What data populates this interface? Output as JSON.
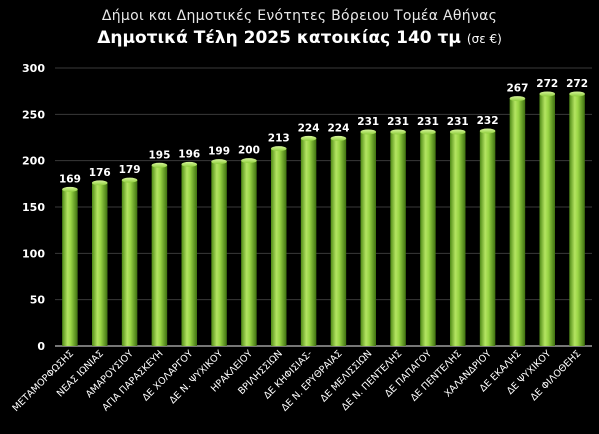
{
  "chart_data": {
    "type": "bar",
    "title": "Δήμοι και Δημοτικές Ενότητες Βόρειου Τομέα Αθήνας",
    "subtitle": "Δημοτικά Τέλη 2025 κατοικίας 140 τμ",
    "unit_note": "(σε €)",
    "categories": [
      "ΜΕΤΑΜΟΡΦΩΣΗΣ",
      "ΝΕΑΣ ΙΩΝΙΑΣ",
      "ΑΜΑΡΟΥΣΙΟΥ",
      "ΑΓΙΑ ΠΑΡΑΣΚΕΥΗ",
      "ΔΕ ΧΟΛΑΡΓΟΥ",
      "ΔΕ Ν. ΨΥΧΙΚΟΥ",
      "ΗΡΑΚΛΕΙΟΥ",
      "ΒΡΙΛΗΣΣΙΩΝ",
      "ΔΕ ΚΗΦΙΣΙΑΣ-",
      "ΔΕ Ν. ΕΡΥΘΡΑΙΑΣ",
      "ΔΕ ΜΕΛΙΣΣΙΩΝ",
      "ΔΕ Ν. ΠΕΝΤΕΛΗΣ",
      "ΔΕ ΠΑΠΑΓΟΥ",
      "ΔΕ ΠΕΝΤΕΛΗΣ",
      "ΧΑΛΑΝΔΡΙΟΥ",
      "ΔΕ ΕΚΑΛΗΣ",
      "ΔΕ ΨΥΧΙΚΟΥ",
      "ΔΕ ΦΙΛΟΘΕΗΣ"
    ],
    "values": [
      169,
      176,
      179,
      195,
      196,
      199,
      200,
      213,
      224,
      224,
      231,
      231,
      231,
      231,
      232,
      267,
      272,
      272
    ],
    "ylim": [
      0,
      300
    ],
    "yticks": [
      0,
      50,
      100,
      150,
      200,
      250,
      300
    ],
    "grid": true,
    "legend": "none",
    "colors": {
      "bar": "#8fce3c",
      "bar_light": "#c8f07a",
      "bar_dark": "#4f8a16",
      "grid": "#3a3a3a",
      "background": "#000000"
    }
  }
}
